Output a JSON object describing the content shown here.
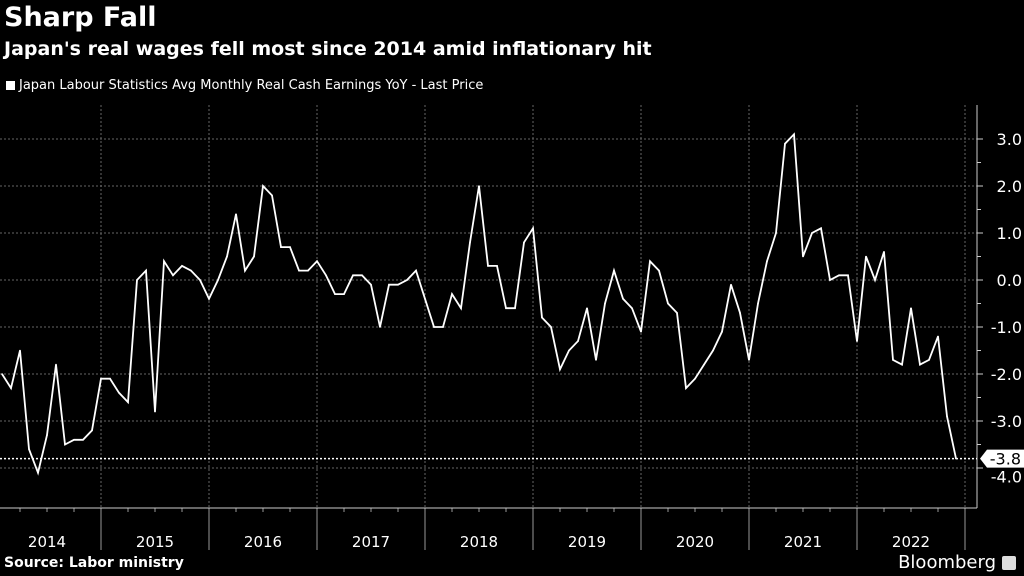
{
  "chart_data": {
    "type": "line",
    "title": "Sharp Fall",
    "subtitle": "Japan's real wages fell most since 2014 amid inflationary hit",
    "legend": "Japan Labour Statistics Avg Monthly Real Cash Earnings YoY - Last Price",
    "legend_placement": "top-left",
    "source": "Source: Labor ministry",
    "brand": "Bloomberg",
    "x_start": "2014-01",
    "x_end": "2022-11",
    "x_tick_labels": [
      "2014",
      "2015",
      "2016",
      "2017",
      "2018",
      "2019",
      "2020",
      "2021",
      "2022"
    ],
    "y_tick_labels": [
      "3.0",
      "2.0",
      "1.0",
      "0.0",
      "-1.0",
      "-2.0",
      "-3.0",
      "-4.0"
    ],
    "y_ticks": [
      3,
      2,
      1,
      0,
      -1,
      -2,
      -3,
      -4
    ],
    "ylim": [
      -4.4,
      3.8
    ],
    "grid": true,
    "last_value_label": "-3.8",
    "last_value": -3.8,
    "line_color": "#ffffff",
    "values": [
      -2.0,
      -2.3,
      -1.5,
      -3.6,
      -4.1,
      -3.3,
      -1.8,
      -3.5,
      -3.4,
      -3.4,
      -3.2,
      -2.1,
      -2.1,
      -2.4,
      -2.6,
      0.0,
      0.2,
      -2.8,
      0.4,
      0.1,
      0.3,
      0.2,
      0.0,
      -0.4,
      0.0,
      0.5,
      1.4,
      0.2,
      0.5,
      2.0,
      1.8,
      0.7,
      0.7,
      0.2,
      0.2,
      0.4,
      0.1,
      -0.3,
      -0.3,
      0.1,
      0.1,
      -0.1,
      -1.0,
      -0.1,
      -0.1,
      0.0,
      0.2,
      -0.4,
      -1.0,
      -1.0,
      -0.3,
      -0.6,
      0.8,
      2.0,
      0.3,
      0.3,
      -0.6,
      -0.6,
      0.8,
      1.1,
      -0.8,
      -1.0,
      -1.9,
      -1.5,
      -1.3,
      -0.6,
      -1.7,
      -0.5,
      0.2,
      -0.4,
      -0.6,
      -1.1,
      0.4,
      0.2,
      -0.5,
      -0.7,
      -2.3,
      -2.1,
      -1.8,
      -1.5,
      -1.1,
      -0.1,
      -0.7,
      -1.7,
      -0.5,
      0.4,
      1.0,
      2.9,
      3.1,
      0.5,
      1.0,
      1.1,
      0.0,
      0.1,
      0.1,
      -1.3,
      0.5,
      0.0,
      0.6,
      -1.7,
      -1.8,
      -0.6,
      -1.8,
      -1.7,
      -1.2,
      -2.9,
      -3.8
    ]
  }
}
